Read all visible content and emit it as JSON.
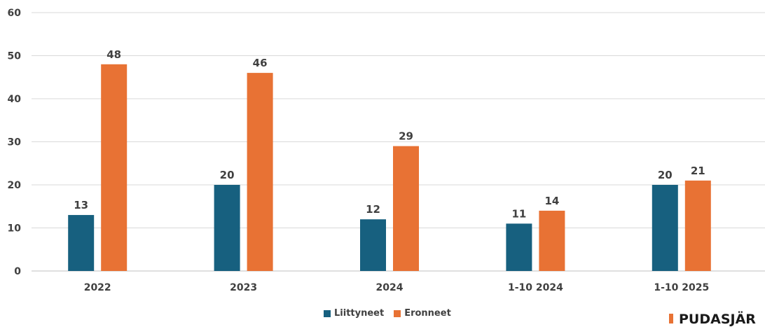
{
  "chart_data": {
    "type": "bar",
    "categories": [
      "2022",
      "2023",
      "2024",
      "1-10 2024",
      "1-10 2025"
    ],
    "series": [
      {
        "name": "Liittyneet",
        "values": [
          13,
          20,
          12,
          11,
          20
        ],
        "color": "#17607f"
      },
      {
        "name": "Eronneet",
        "values": [
          48,
          46,
          29,
          14,
          21
        ],
        "color": "#e87234"
      }
    ],
    "yticks": [
      "0",
      "10",
      "20",
      "30",
      "40",
      "50",
      "60"
    ],
    "ylim": [
      0,
      60
    ],
    "grid": true,
    "legend": "bottom-center",
    "title": "",
    "xlabel": "",
    "ylabel": ""
  },
  "brand": {
    "text": "PUDASJÄR",
    "accent": "#e87234"
  }
}
